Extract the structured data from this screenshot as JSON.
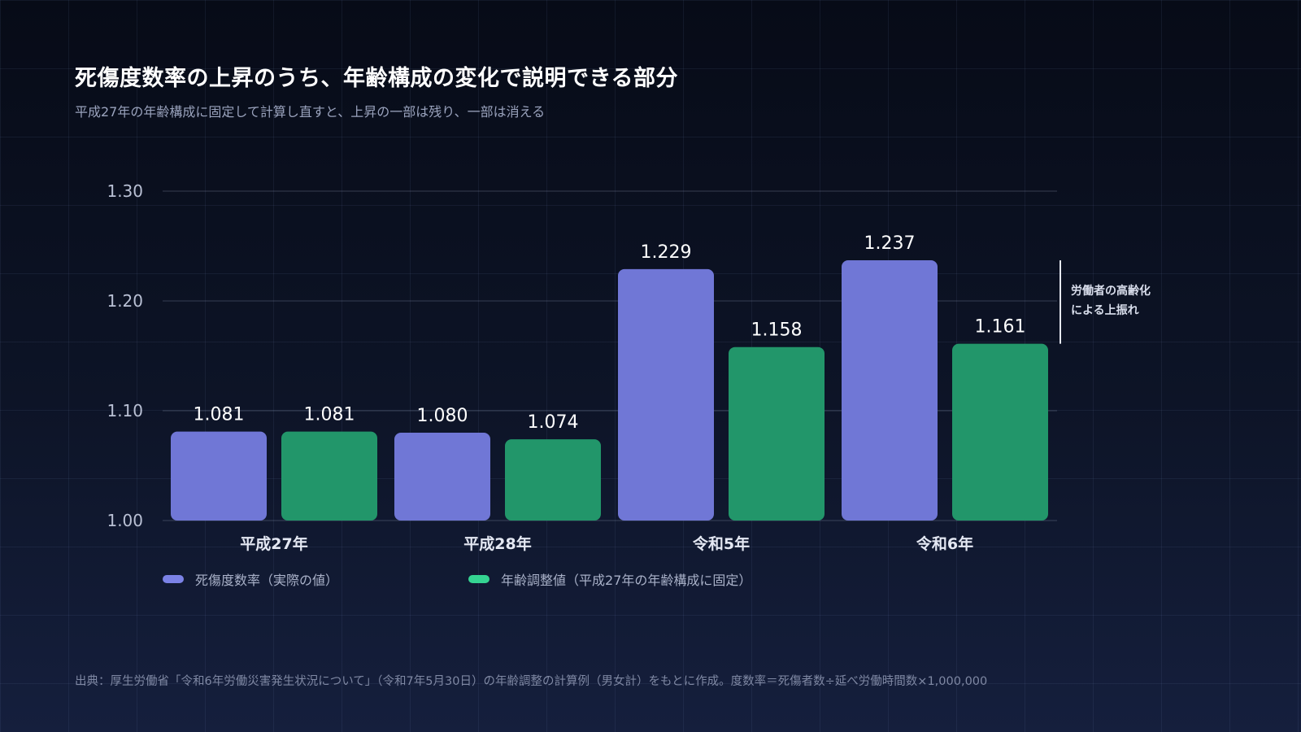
{
  "header": {
    "title": "死傷度数率の上昇のうち、年齢構成の変化で説明できる部分",
    "subtitle": "平成27年の年齢構成に固定して計算し直すと、上昇の一部は残り、一部は消える"
  },
  "annotation": {
    "line1": "労働者の高齢化",
    "line2": "による上振れ"
  },
  "source": "出典：厚生労働省「令和6年労働災害発生状況について」（令和7年5月30日）の年齢調整の計算例（男女計）をもとに作成。度数率＝死傷者数÷延べ労働時間数×1,000,000",
  "chart_data": {
    "type": "bar",
    "categories": [
      "平成27年",
      "平成28年",
      "令和5年",
      "令和6年"
    ],
    "series": [
      {
        "name": "死傷度数率（実際の値）",
        "values": [
          1.081,
          1.08,
          1.229,
          1.237
        ],
        "color": "#7077d6"
      },
      {
        "name": "年齢調整値（平成27年の年齢構成に固定）",
        "values": [
          1.081,
          1.074,
          1.158,
          1.161
        ],
        "color": "#22966a"
      }
    ],
    "ylim": [
      1.0,
      1.3
    ],
    "yticks": [
      "1.00",
      "1.10",
      "1.20",
      "1.30"
    ],
    "grid": true,
    "legend": "bottom-left"
  },
  "colors": {
    "legend_actual": "#7b82e6",
    "legend_adjusted": "#35d492"
  }
}
